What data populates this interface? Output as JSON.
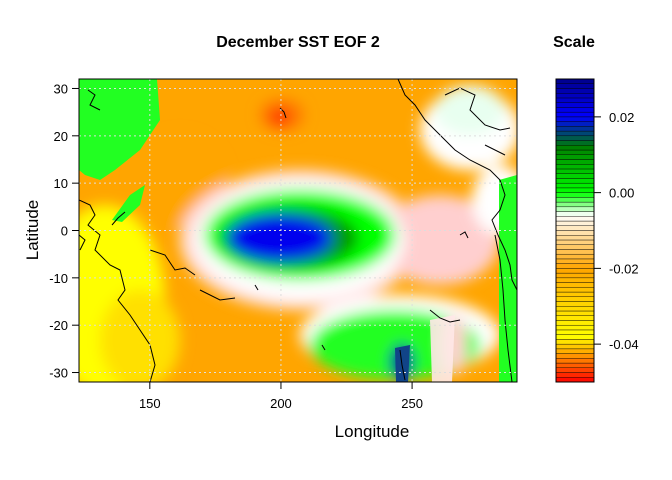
{
  "chart_data": {
    "type": "heatmap",
    "title": "December SST EOF 2",
    "xlabel": "Longitude",
    "ylabel": "Latitude",
    "xlim": [
      123,
      290
    ],
    "ylim": [
      -32,
      32
    ],
    "xticks": [
      150,
      200,
      250
    ],
    "yticks": [
      30,
      20,
      10,
      0,
      -10,
      -20,
      -30
    ],
    "grid": true,
    "grid_style": "dotted",
    "value_range": [
      -0.05,
      0.03
    ],
    "colorbar": {
      "title": "Scale",
      "ticks": [
        0.02,
        0.0,
        -0.02,
        -0.04
      ],
      "tick_labels": [
        "0.02",
        "0.00",
        "-0.02",
        "-0.04"
      ],
      "colors": [
        "#ff0000",
        "#ffff00",
        "#ffa500",
        "#ffffff",
        "#00ff00",
        "#008000",
        "#0000ff",
        "#00008b"
      ],
      "color_stops": [
        -0.05,
        -0.038,
        -0.02,
        -0.006,
        0.0,
        0.012,
        0.02,
        0.03
      ]
    },
    "field_features": [
      {
        "feature": "positive center",
        "lon": 203,
        "lat": -3,
        "value": 0.028
      },
      {
        "feature": "negative center",
        "lon": 200,
        "lat": 23,
        "value": -0.047
      },
      {
        "feature": "positive",
        "lon": 133,
        "lat": 27,
        "value": 0.004
      },
      {
        "feature": "positive",
        "lon": 240,
        "lat": -27,
        "value": 0.006
      },
      {
        "feature": "negative",
        "lon": 135,
        "lat": -20,
        "value": -0.037
      }
    ]
  }
}
